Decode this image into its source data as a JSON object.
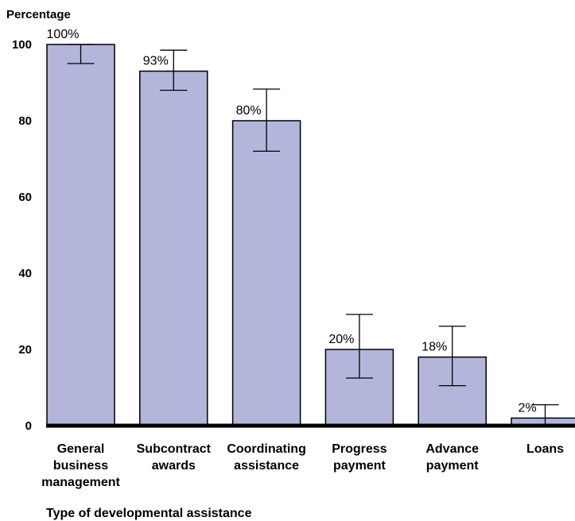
{
  "chart_data": {
    "type": "bar",
    "title": "",
    "ylabel": "Percentage",
    "xlabel": "Type of developmental assistance",
    "ylim": [
      0,
      100
    ],
    "yticks": [
      0,
      20,
      40,
      60,
      80,
      100
    ],
    "grid": false,
    "bar_color": "#b3b6da",
    "categories": [
      [
        "General",
        "business",
        "management"
      ],
      [
        "Subcontract",
        "awards"
      ],
      [
        "Coordinating",
        "assistance"
      ],
      [
        "Progress",
        "payment"
      ],
      [
        "Advance",
        "payment"
      ],
      [
        "Loans"
      ]
    ],
    "values": [
      100,
      93,
      80,
      20,
      18,
      2
    ],
    "data_labels": [
      "100%",
      "93%",
      "80%",
      "20%",
      "18%",
      "2%"
    ],
    "error_bars": [
      {
        "low": 95,
        "high": 100
      },
      {
        "low": 88,
        "high": 98.5
      },
      {
        "low": 72,
        "high": 88.3
      },
      {
        "low": 12.5,
        "high": 29.2
      },
      {
        "low": 10.5,
        "high": 26.1
      },
      {
        "low": 0,
        "high": 5.5
      }
    ]
  }
}
